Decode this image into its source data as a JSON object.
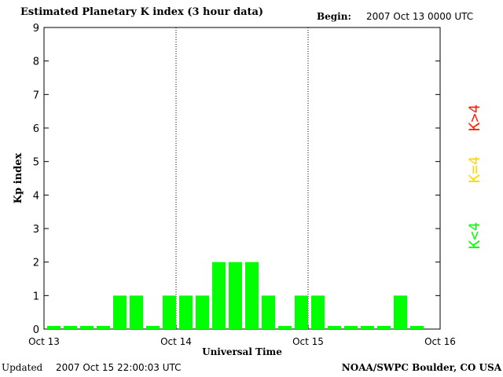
{
  "header": {
    "title": "Estimated Planetary K index (3 hour data)",
    "begin_label": "Begin:",
    "begin_value": "2007 Oct 13 0000 UTC"
  },
  "footer": {
    "updated_label": "Updated",
    "updated_value": "2007 Oct 15 22:00:03 UTC",
    "source": "NOAA/SWPC Boulder, CO USA"
  },
  "legend": {
    "items": [
      {
        "label": "K<4",
        "color": "#00ff00"
      },
      {
        "label": "K=4",
        "color": "#ffd700"
      },
      {
        "label": "K>4",
        "color": "#ff2200"
      }
    ]
  },
  "chart_data": {
    "type": "bar",
    "title": "Estimated Planetary K index (3 hour data)",
    "xlabel": "Universal Time",
    "ylabel": "Kp index",
    "ylim": [
      0,
      9
    ],
    "yticks": [
      0,
      1,
      2,
      3,
      4,
      5,
      6,
      7,
      8,
      9
    ],
    "x_ticks": [
      "Oct 13",
      "Oct 14",
      "Oct 15",
      "Oct 16"
    ],
    "day_dividers": [
      "Oct 14",
      "Oct 15"
    ],
    "grid": false,
    "legend_placement": "right, vertical",
    "bar_color": "#00ff00",
    "interval_hours": 3,
    "series": [
      {
        "values": [
          0,
          0,
          0,
          0,
          1,
          1,
          0,
          1,
          1,
          1,
          2,
          2,
          2,
          1,
          0,
          1,
          1,
          0,
          0,
          0,
          0,
          1,
          0
        ]
      }
    ]
  }
}
